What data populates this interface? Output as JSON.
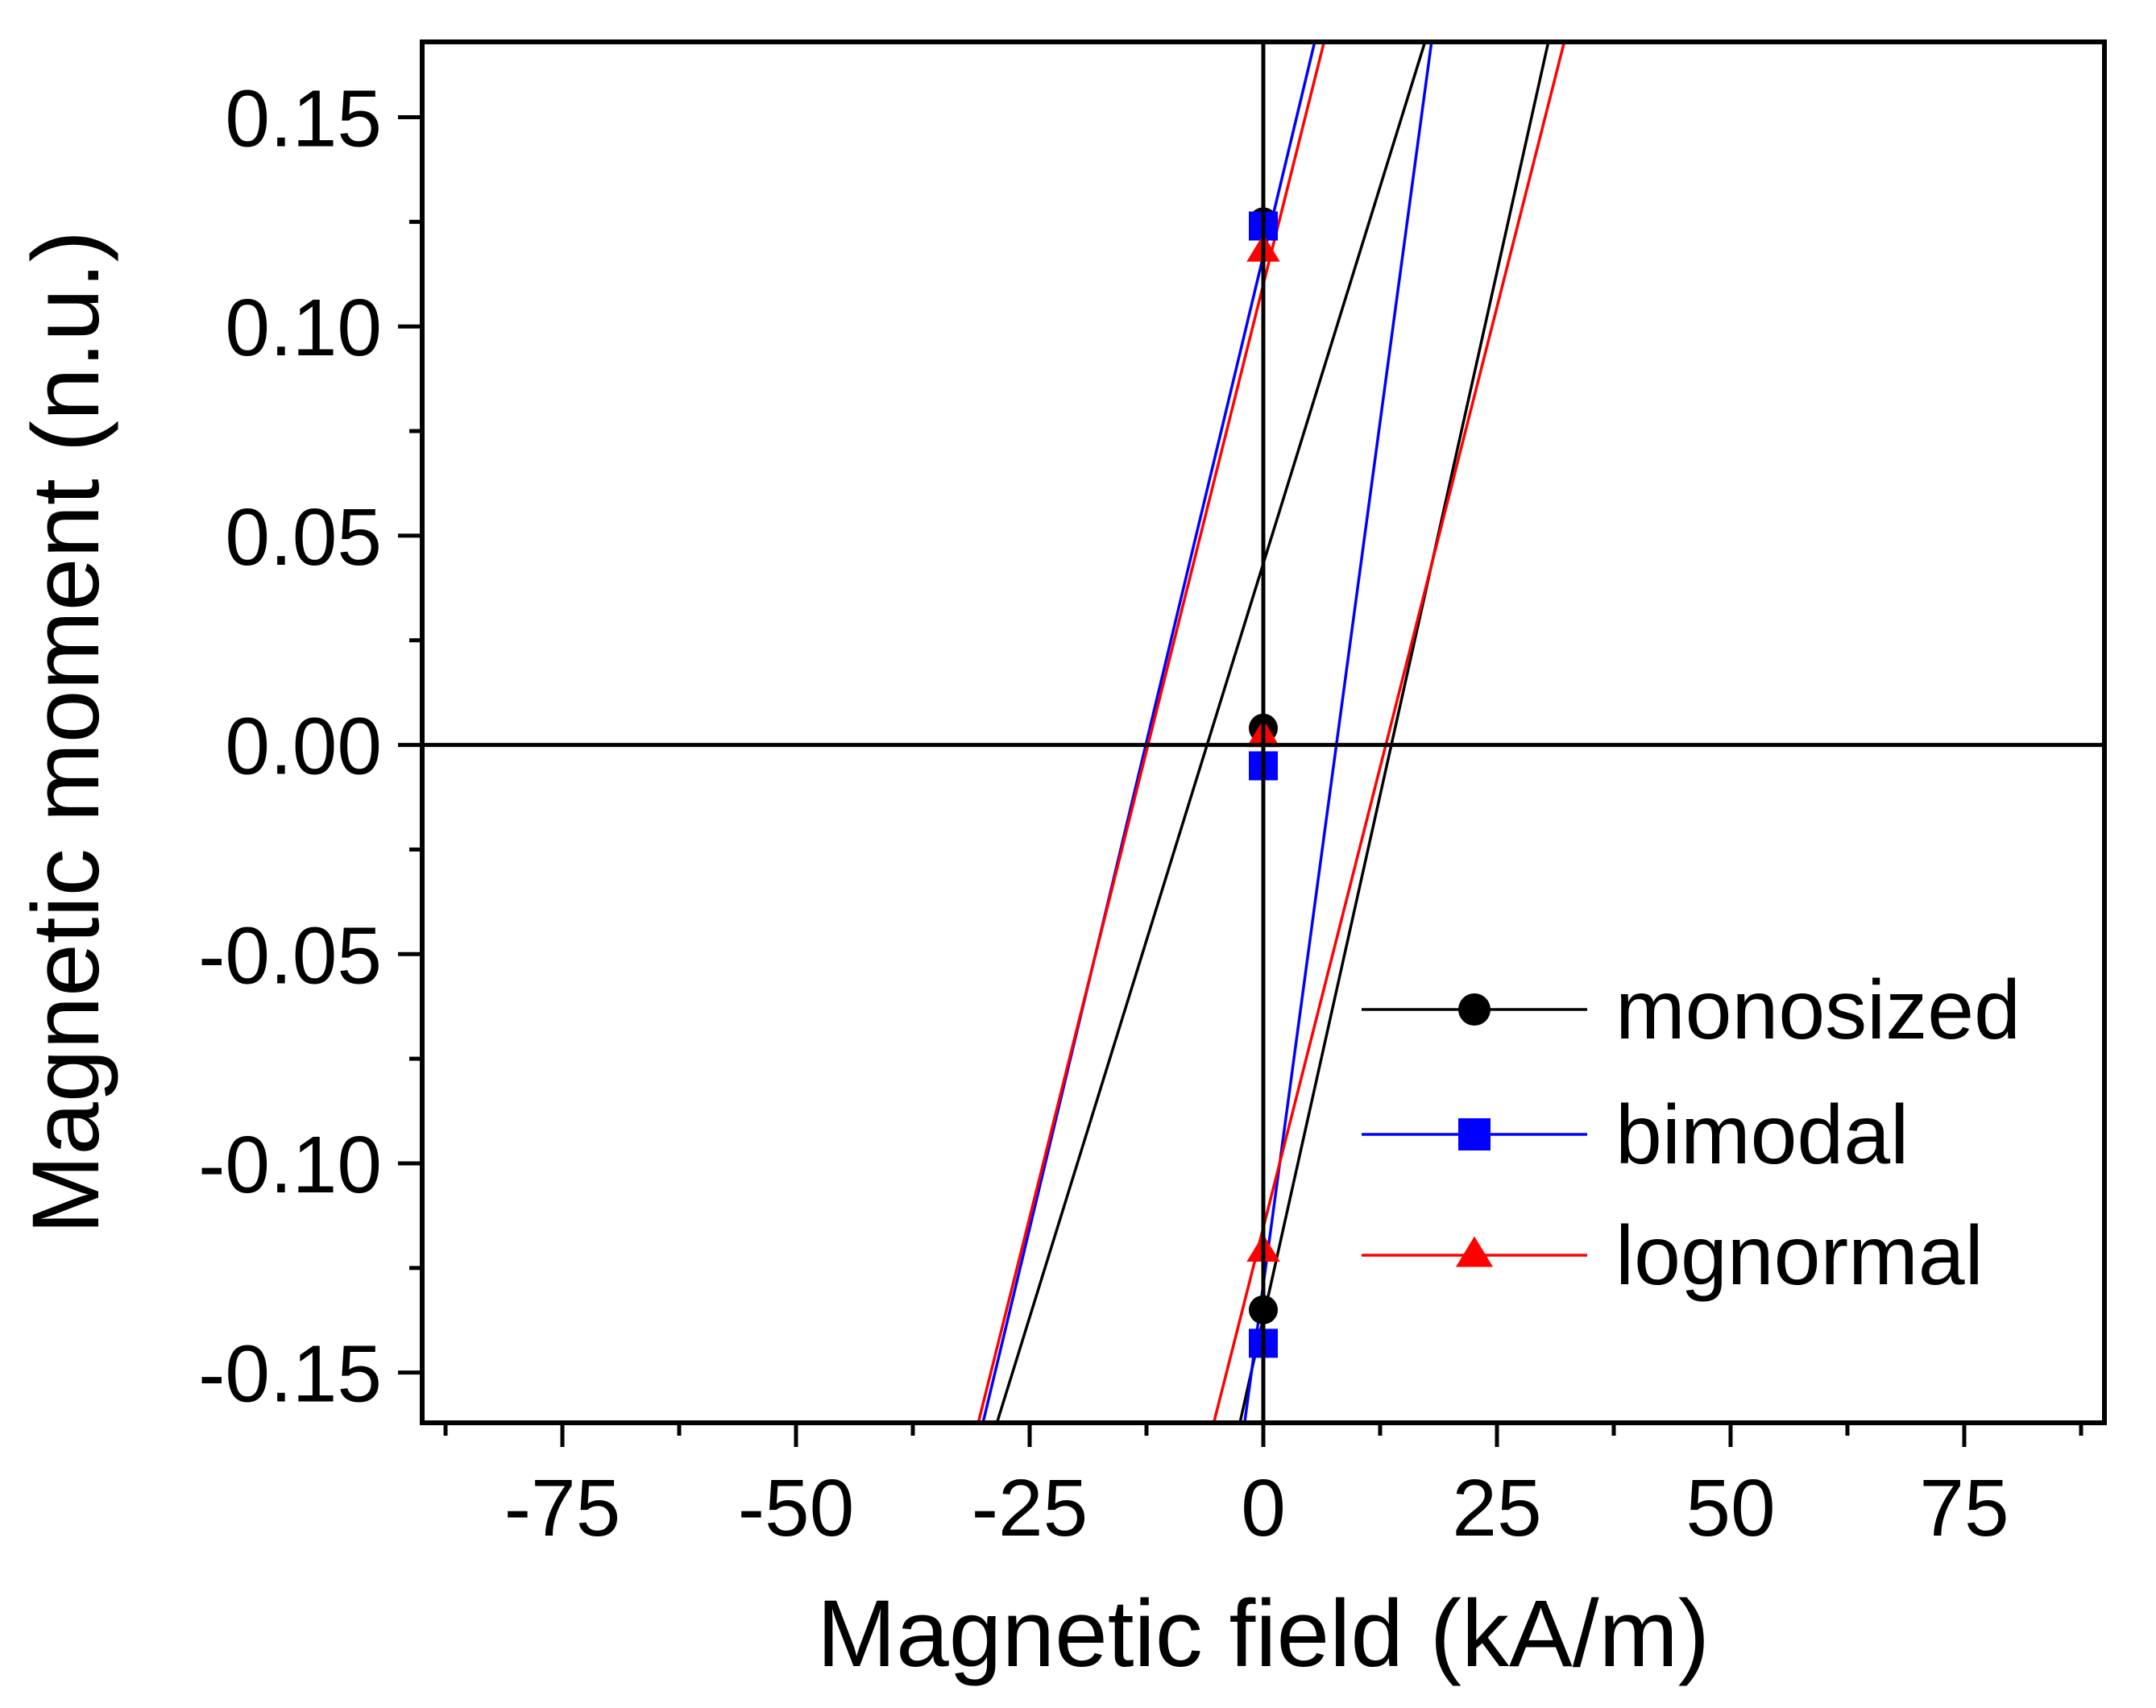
{
  "chart_data": {
    "type": "line",
    "title": "",
    "xlabel": "Magnetic field (kA/m)",
    "ylabel": "Magnetic moment (n.u.)",
    "xlim": [
      -90,
      90
    ],
    "ylim": [
      -0.162,
      0.168
    ],
    "x_ticks": [
      -75,
      -50,
      -25,
      0,
      25,
      50,
      75
    ],
    "x_tick_labels": [
      "-75",
      "-50",
      "-25",
      "0",
      "25",
      "50",
      "75"
    ],
    "y_ticks": [
      -0.15,
      -0.1,
      -0.05,
      0.0,
      0.05,
      0.1,
      0.15
    ],
    "y_tick_labels": [
      "-0.15",
      "-0.10",
      "-0.05",
      "0.00",
      "0.05",
      "0.10",
      "0.15"
    ],
    "grid": false,
    "legend_position": "bottom-right",
    "zero_lines": true,
    "series": [
      {
        "name": "monosized",
        "color": "#000000",
        "marker": "circle",
        "curves": [
          {
            "x": [
              -28.5,
              17.3
            ],
            "y": [
              -0.162,
              0.168
            ]
          },
          {
            "x": [
              -2.5,
              30.5
            ],
            "y": [
              -0.162,
              0.168
            ]
          }
        ],
        "points": [
          {
            "x": 0,
            "y": 0.125
          },
          {
            "x": 0,
            "y": 0.004
          },
          {
            "x": 0,
            "y": -0.135
          }
        ]
      },
      {
        "name": "bimodal",
        "color": "#0000ff",
        "marker": "square",
        "curves": [
          {
            "x": [
              -30.0,
              5.5
            ],
            "y": [
              -0.162,
              0.168
            ]
          },
          {
            "x": [
              -2.0,
              18.0
            ],
            "y": [
              -0.162,
              0.168
            ]
          }
        ],
        "points": [
          {
            "x": 0,
            "y": 0.124
          },
          {
            "x": 0,
            "y": -0.005
          },
          {
            "x": 0,
            "y": -0.143
          }
        ]
      },
      {
        "name": "lognormal",
        "color": "#ff0000",
        "marker": "triangle",
        "curves": [
          {
            "x": [
              -30.5,
              6.5
            ],
            "y": [
              -0.162,
              0.168
            ]
          },
          {
            "x": [
              -5.3,
              32.2
            ],
            "y": [
              -0.162,
              0.168
            ]
          }
        ],
        "points": [
          {
            "x": 0,
            "y": 0.118
          },
          {
            "x": 0,
            "y": 0.002
          },
          {
            "x": 0,
            "y": -0.121
          }
        ]
      }
    ]
  }
}
